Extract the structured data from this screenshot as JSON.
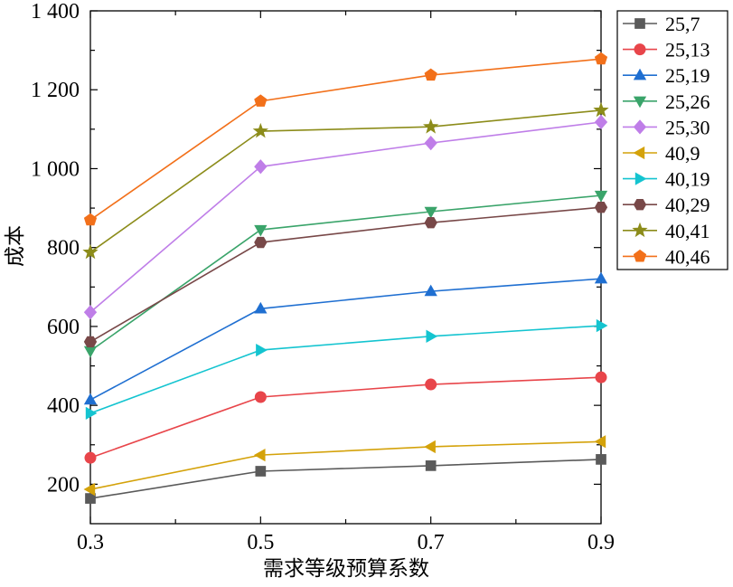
{
  "chart_data": {
    "type": "line",
    "title": "",
    "xlabel": "需求等级预算系数",
    "ylabel": "成本",
    "x": [
      0.3,
      0.5,
      0.7,
      0.9
    ],
    "x_tick_labels": [
      "0.3",
      "0.5",
      "0.7",
      "0.9"
    ],
    "y_ticks": [
      200,
      400,
      600,
      800,
      1000,
      1200,
      1400
    ],
    "y_tick_labels": [
      "200",
      "400",
      "600",
      "800",
      "1 000",
      "1 200",
      "1 400"
    ],
    "xlim": [
      0.3,
      0.9
    ],
    "ylim": [
      100,
      1400
    ],
    "grid": false,
    "legend_position": "right",
    "series": [
      {
        "name": "25,7",
        "color": "#5a5a5a",
        "marker": "square",
        "values": [
          164,
          233,
          247,
          263
        ]
      },
      {
        "name": "25,13",
        "color": "#e8454a",
        "marker": "circle",
        "values": [
          267,
          421,
          453,
          471
        ]
      },
      {
        "name": "25,19",
        "color": "#1f6fd1",
        "marker": "triangle-up",
        "values": [
          414,
          645,
          689,
          721
        ]
      },
      {
        "name": "25,26",
        "color": "#3aa46a",
        "marker": "triangle-down",
        "values": [
          538,
          845,
          891,
          932
        ]
      },
      {
        "name": "25,30",
        "color": "#bf7ee8",
        "marker": "diamond",
        "values": [
          636,
          1005,
          1065,
          1118
        ]
      },
      {
        "name": "40,9",
        "color": "#d4a20a",
        "marker": "triangle-left",
        "values": [
          187,
          274,
          295,
          308
        ]
      },
      {
        "name": "40,19",
        "color": "#14c4d0",
        "marker": "triangle-right",
        "values": [
          380,
          540,
          575,
          602
        ]
      },
      {
        "name": "40,29",
        "color": "#784848",
        "marker": "hexagon",
        "values": [
          561,
          813,
          863,
          902
        ]
      },
      {
        "name": "40,41",
        "color": "#8c8c1a",
        "marker": "star",
        "values": [
          788,
          1095,
          1106,
          1148
        ]
      },
      {
        "name": "40,46",
        "color": "#f2701a",
        "marker": "pentagon",
        "values": [
          870,
          1171,
          1237,
          1278
        ]
      }
    ]
  }
}
